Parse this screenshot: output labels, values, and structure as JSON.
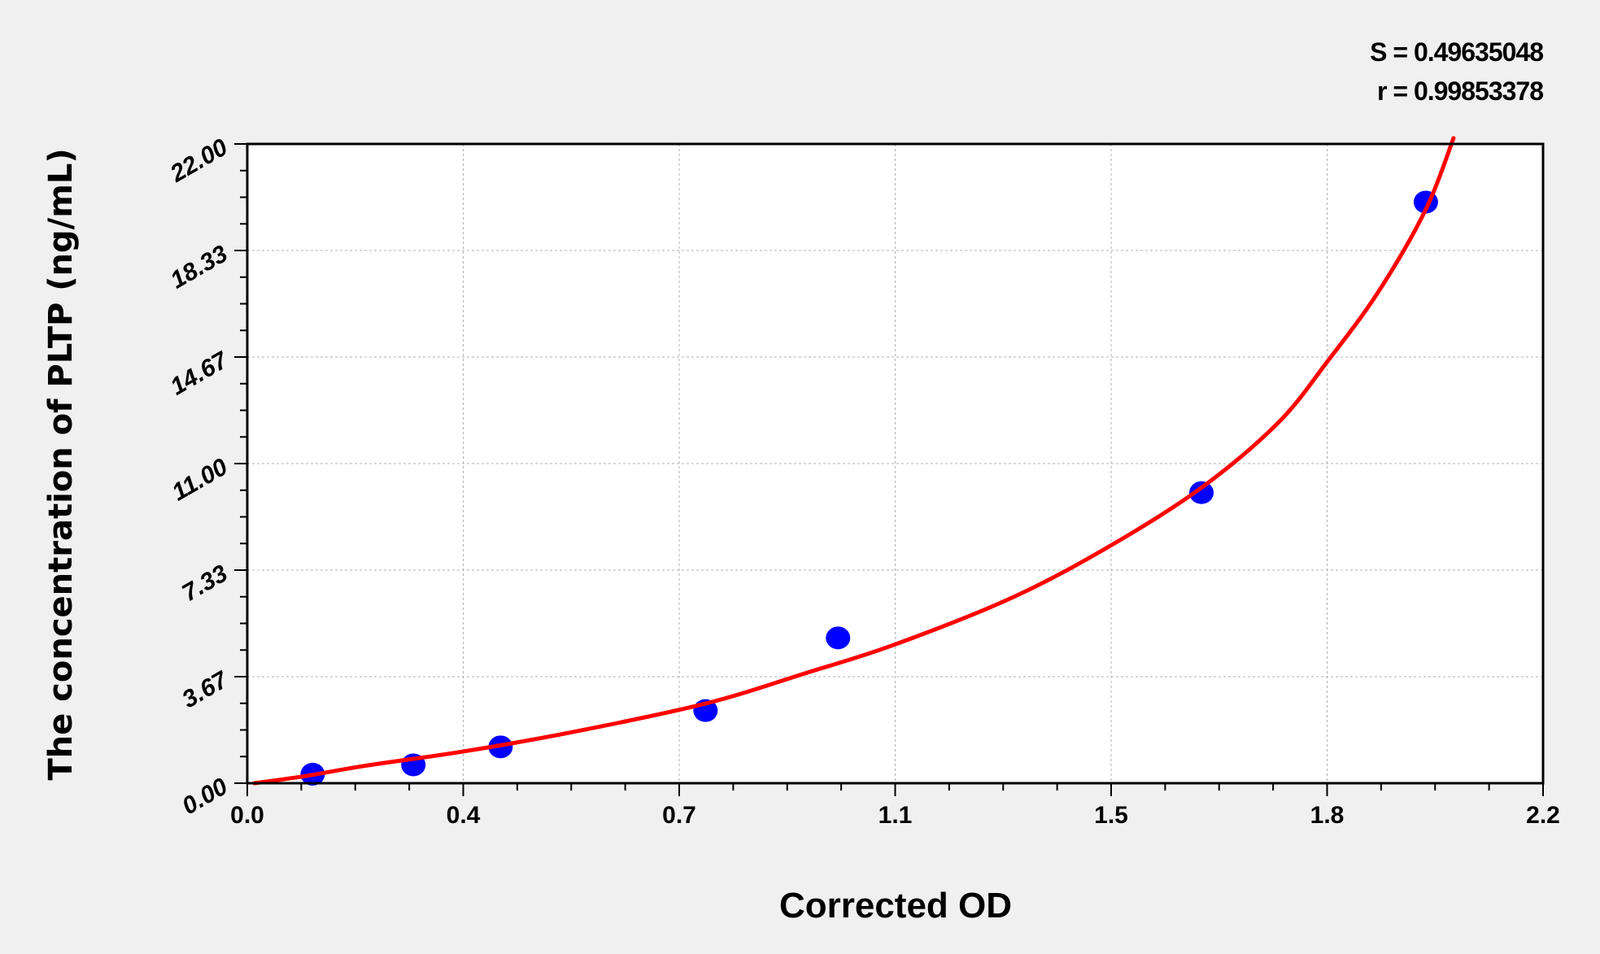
{
  "chart_data": {
    "type": "scatter",
    "title": "",
    "xlabel": "Corrected OD",
    "ylabel": "The concentration of PLTP (ng/mL)",
    "xlim": [
      0.0,
      2.2
    ],
    "ylim": [
      0.0,
      22.0
    ],
    "x_tick_labels": [
      "0.0",
      "0.4",
      "0.7",
      "1.1",
      "1.5",
      "1.8",
      "2.2"
    ],
    "y_tick_labels": [
      "0.00",
      "3.67",
      "7.33",
      "11.00",
      "14.67",
      "18.33",
      "22.00"
    ],
    "grid": true,
    "annotations": [
      "S = 0.49635048",
      "r = 0.99853378"
    ],
    "series": [
      {
        "type": "scatter",
        "color": "#0000ff",
        "x": [
          0.111,
          0.282,
          0.43,
          0.778,
          1.003,
          1.62,
          2.001
        ],
        "y": [
          0.31,
          0.63,
          1.25,
          2.5,
          5.0,
          10.0,
          20.0
        ]
      },
      {
        "type": "line",
        "color": "#ff0000",
        "x": [
          0.012,
          0.1,
          0.2,
          0.366,
          0.55,
          0.778,
          0.95,
          1.099,
          1.3,
          1.466,
          1.62,
          1.75,
          1.833,
          1.92,
          2.001,
          2.048
        ],
        "y": [
          0.0,
          0.25,
          0.6,
          1.09,
          1.75,
          2.74,
          3.8,
          4.77,
          6.4,
          8.18,
          10.17,
          12.4,
          14.49,
          16.9,
          19.75,
          22.2
        ]
      }
    ]
  }
}
